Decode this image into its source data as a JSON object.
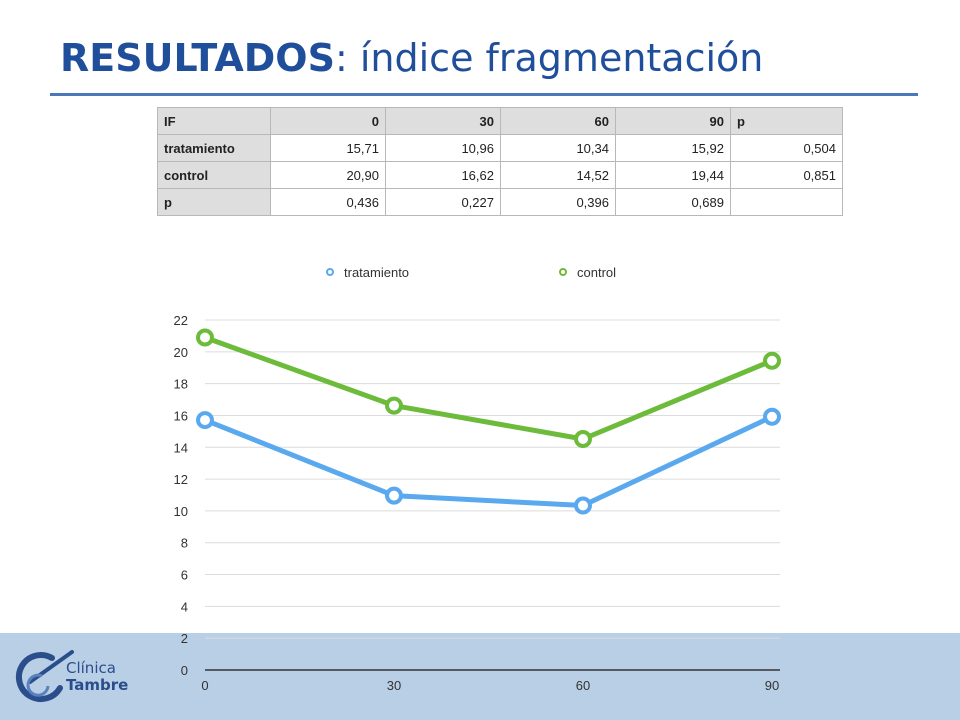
{
  "slide": {
    "title_bold": "RESULTADOS",
    "title_rest": ": índice fragmentación"
  },
  "logo": {
    "line1": "Clínica",
    "line2": "Tambre"
  },
  "table": {
    "header": [
      "IF",
      "0",
      "30",
      "60",
      "90",
      "p"
    ],
    "rows": [
      [
        "tratamiento",
        "15,71",
        "10,96",
        "10,34",
        "15,92",
        "0,504"
      ],
      [
        "control",
        "20,90",
        "16,62",
        "14,52",
        "19,44",
        "0,851"
      ],
      [
        "p",
        "0,436",
        "0,227",
        "0,396",
        "0,689",
        ""
      ]
    ]
  },
  "chart_data": {
    "type": "line",
    "x": [
      0,
      30,
      60,
      90
    ],
    "x_tick_labels": [
      "0",
      "30",
      "60",
      "90"
    ],
    "y_ticks": [
      0,
      2,
      4,
      6,
      8,
      10,
      12,
      14,
      16,
      18,
      20,
      22
    ],
    "ylim": [
      0,
      22
    ],
    "grid": true,
    "legend_position": "top",
    "series": [
      {
        "name": "tratamiento",
        "color": "#5aa9ef",
        "values": [
          15.71,
          10.96,
          10.34,
          15.92
        ]
      },
      {
        "name": "control",
        "color": "#6cbb3a",
        "values": [
          20.9,
          16.62,
          14.52,
          19.44
        ]
      }
    ]
  },
  "colors": {
    "title": "#1f4e9a",
    "band": "#b9cfe6",
    "table_header": "#dedede"
  }
}
